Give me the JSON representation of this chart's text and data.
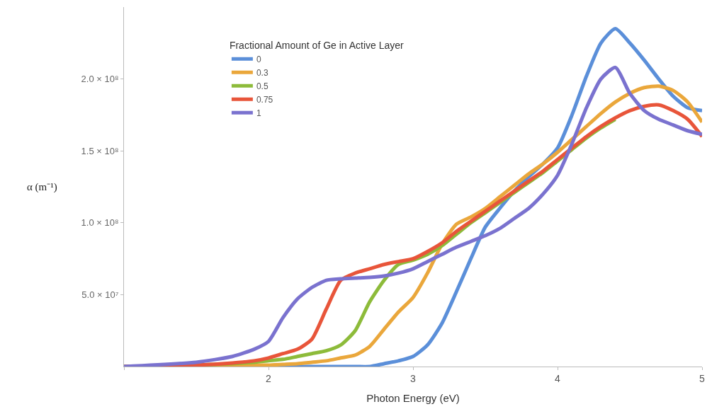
{
  "chart_data": {
    "type": "line",
    "xlabel": "Photon Energy (eV)",
    "ylabel": "α (m⁻¹)",
    "legend_title": "Fractional Amount of Ge in Active Layer",
    "x": [
      1.0,
      1.5,
      1.75,
      1.9,
      2.0,
      2.1,
      2.2,
      2.3,
      2.4,
      2.5,
      2.6,
      2.7,
      2.8,
      2.9,
      3.0,
      3.1,
      3.2,
      3.3,
      3.4,
      3.5,
      3.6,
      3.7,
      3.8,
      3.9,
      4.0,
      4.1,
      4.2,
      4.3,
      4.4,
      4.5,
      4.6,
      4.7,
      4.8,
      4.9,
      5.0
    ],
    "series": [
      {
        "name": "0",
        "color": "#5b8fd9",
        "values": [
          0,
          0,
          0,
          0,
          0,
          0,
          0,
          0,
          0,
          0,
          0,
          0,
          2000000,
          4000000,
          7000000,
          15000000,
          30000000,
          52000000,
          75000000,
          97000000,
          110000000,
          122000000,
          132000000,
          141000000,
          152000000,
          175000000,
          202000000,
          225000000,
          235000000,
          225000000,
          213000000,
          200000000,
          188000000,
          180000000,
          178000000
        ]
      },
      {
        "name": "0.3",
        "color": "#eaa73b",
        "values": [
          0,
          500000,
          700000,
          900000,
          1000000,
          1500000,
          2000000,
          3000000,
          4000000,
          6000000,
          8000000,
          14000000,
          26000000,
          38000000,
          48000000,
          65000000,
          85000000,
          99000000,
          104000000,
          110000000,
          118000000,
          126000000,
          134000000,
          141000000,
          149000000,
          158000000,
          167000000,
          176000000,
          184000000,
          190000000,
          194000000,
          195000000,
          192000000,
          184000000,
          170000000
        ]
      },
      {
        "name": "0.5",
        "color": "#8dbb3a",
        "values": [
          0,
          1000000,
          2000000,
          3000000,
          4000000,
          5000000,
          7000000,
          9000000,
          11000000,
          15000000,
          25000000,
          45000000,
          60000000,
          71000000,
          74000000,
          78000000,
          84000000,
          92000000,
          100000000,
          107000000,
          114000000,
          121000000,
          128000000,
          135000000,
          143000000,
          151000000,
          159000000,
          166000000,
          172000000,
          null,
          null,
          null,
          null,
          null,
          null
        ]
      },
      {
        "name": "0.75",
        "color": "#e8553a",
        "values": [
          0,
          1000000,
          2500000,
          4000000,
          6000000,
          9000000,
          12000000,
          19000000,
          40000000,
          60000000,
          65000000,
          68000000,
          71000000,
          73000000,
          75000000,
          80000000,
          86000000,
          94000000,
          101000000,
          108000000,
          115000000,
          122000000,
          129000000,
          136000000,
          144000000,
          152000000,
          160000000,
          167000000,
          173000000,
          178000000,
          181000000,
          182000000,
          178000000,
          172000000,
          160000000
        ]
      },
      {
        "name": "1",
        "color": "#7a72cf",
        "values": [
          0,
          3000000,
          7000000,
          12000000,
          17500000,
          34000000,
          47000000,
          55000000,
          60000000,
          61000000,
          61500000,
          62000000,
          63000000,
          65000000,
          68000000,
          73000000,
          78000000,
          83000000,
          87000000,
          91000000,
          96000000,
          103000000,
          110000000,
          120000000,
          133000000,
          155000000,
          180000000,
          200000000,
          208000000,
          190000000,
          178000000,
          172000000,
          168000000,
          164000000,
          161500000
        ]
      }
    ],
    "xlim": [
      1,
      5
    ],
    "ylim": [
      0,
      250000000
    ],
    "xticks": [
      {
        "value": 1,
        "label": null
      },
      2,
      3,
      4,
      5
    ],
    "yticks": [
      {
        "value": 50000000,
        "label": "5.0 × 10⁷"
      },
      {
        "value": 100000000,
        "label": "1.0 × 10⁸"
      },
      {
        "value": 150000000,
        "label": "1.5 × 10⁸"
      },
      {
        "value": 200000000,
        "label": "2.0 × 10⁸"
      }
    ],
    "legend": "top left",
    "marker": "none",
    "line_style": "solid"
  }
}
